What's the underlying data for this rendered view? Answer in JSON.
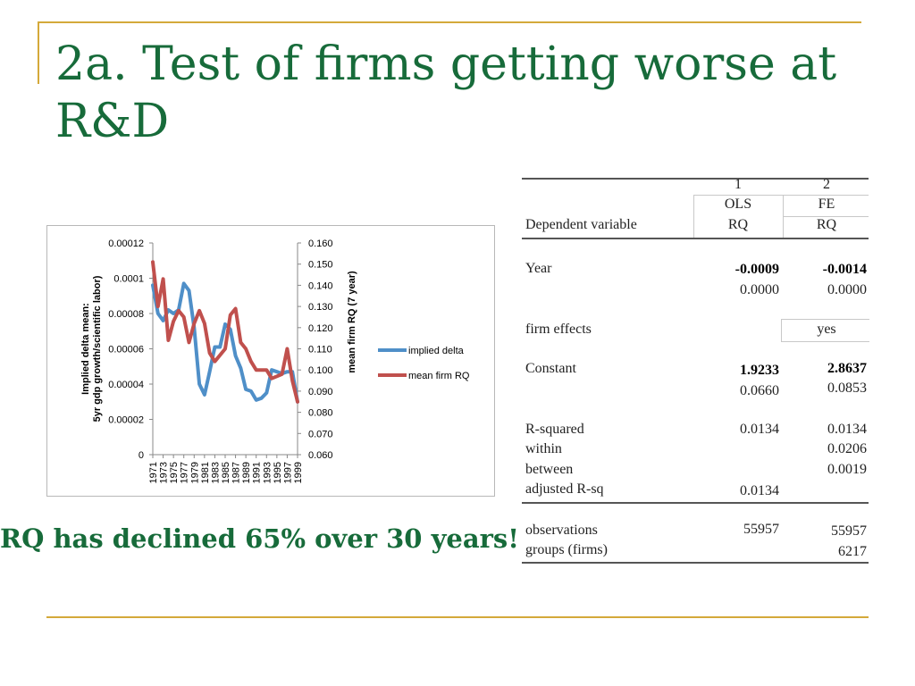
{
  "slide": {
    "title": "2a. Test of firms getting worse at R&D",
    "callout": "RQ has declined 65% over 30 years!"
  },
  "colors": {
    "title_green": "#176b3a",
    "rule_gold": "#d4a93a",
    "implied_delta": "#4f8fc8",
    "mean_firm_rq": "#c0504d"
  },
  "chart_data": {
    "type": "line",
    "x": [
      1971,
      1972,
      1973,
      1974,
      1975,
      1976,
      1977,
      1978,
      1979,
      1980,
      1981,
      1982,
      1983,
      1984,
      1985,
      1986,
      1987,
      1988,
      1989,
      1990,
      1991,
      1992,
      1993,
      1994,
      1995,
      1996,
      1997,
      1998,
      1999
    ],
    "x_tick_labels": [
      "1971",
      "1973",
      "1975",
      "1977",
      "1979",
      "1981",
      "1983",
      "1985",
      "1987",
      "1989",
      "1991",
      "1993",
      "1995",
      "1997",
      "1999"
    ],
    "ylabel_left": "Implied delta mean: 5yr gdp growth/scientific labor)",
    "ylabel_right": "mean firm RQ (7 year)",
    "y_left_ticks": [
      "0",
      "0.00002",
      "0.00004",
      "0.00006",
      "0.00008",
      "0.0001",
      "0.00012"
    ],
    "y_right_ticks": [
      "0.060",
      "0.070",
      "0.080",
      "0.090",
      "0.100",
      "0.110",
      "0.120",
      "0.130",
      "0.140",
      "0.150",
      "0.160"
    ],
    "ylim_left": [
      0,
      0.00012
    ],
    "ylim_right": [
      0.06,
      0.16
    ],
    "legend_position": "right",
    "series": [
      {
        "name": "implied delta",
        "axis": "left",
        "values": [
          9.6e-05,
          8e-05,
          7.6e-05,
          8.2e-05,
          8e-05,
          8.2e-05,
          9.7e-05,
          9.3e-05,
          7.2e-05,
          4e-05,
          3.4e-05,
          4.7e-05,
          6.1e-05,
          6.1e-05,
          7.4e-05,
          7.1e-05,
          5.6e-05,
          4.9e-05,
          3.7e-05,
          3.6e-05,
          3.1e-05,
          3.2e-05,
          3.5e-05,
          4.8e-05,
          4.7e-05,
          4.6e-05,
          4.7e-05,
          4.7e-05,
          3e-05
        ]
      },
      {
        "name": "mean firm RQ",
        "axis": "right",
        "values": [
          0.151,
          0.13,
          0.143,
          0.114,
          0.123,
          0.128,
          0.125,
          0.113,
          0.122,
          0.128,
          0.122,
          0.108,
          0.104,
          0.107,
          0.11,
          0.126,
          0.129,
          0.113,
          0.11,
          0.104,
          0.1,
          0.1,
          0.1,
          0.096,
          0.097,
          0.098,
          0.11,
          0.095,
          0.085
        ]
      }
    ]
  },
  "regression_table": {
    "col_numbers": [
      "1",
      "2"
    ],
    "col_methods": [
      "OLS",
      "FE"
    ],
    "dependent_variable_label": "Dependent variable",
    "dependent_variables": [
      "RQ",
      "RQ"
    ],
    "year": {
      "label": "Year",
      "coef": [
        "-0.0009",
        "-0.0014"
      ],
      "se": [
        "0.0000",
        "0.0000"
      ]
    },
    "firm_effects": {
      "label": "firm effects",
      "values": [
        "",
        "yes"
      ]
    },
    "constant": {
      "label": "Constant",
      "coef": [
        "1.9233",
        "2.8637"
      ],
      "se": [
        "0.0660",
        "0.0853"
      ]
    },
    "r_squared": {
      "label": "R-squared",
      "values": [
        "0.0134",
        "0.0134"
      ]
    },
    "within": {
      "label": "within",
      "value": "0.0206"
    },
    "between": {
      "label": "between",
      "value": "0.0019"
    },
    "adjusted": {
      "label": "adjusted R-sq",
      "value": "0.0134"
    },
    "observations": {
      "label": "observations",
      "values": [
        "55957",
        "55957"
      ]
    },
    "groups": {
      "label": "groups (firms)",
      "value": "6217"
    }
  }
}
